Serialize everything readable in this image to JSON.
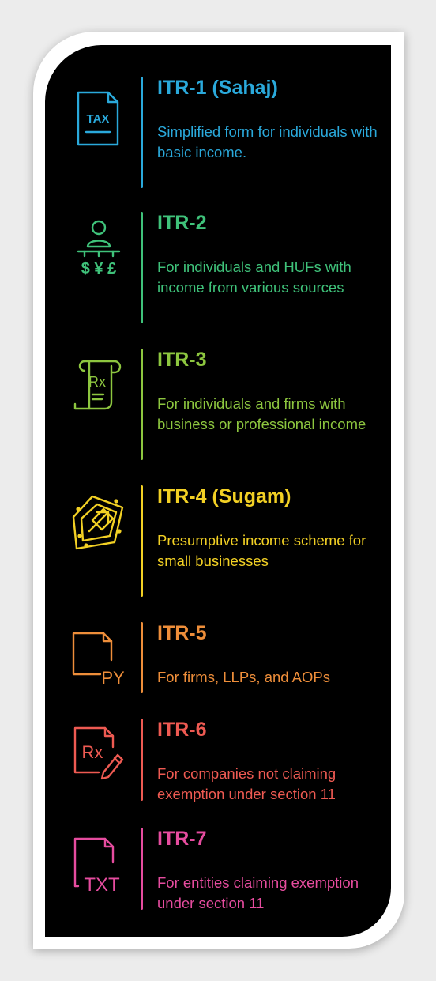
{
  "forms": [
    {
      "title": "ITR-1 (Sahaj)",
      "desc": "Simplified form for individuals with basic income.",
      "color": "#2aa9db",
      "icon": "tax-document-icon",
      "icon_text": "TAX"
    },
    {
      "title": "ITR-2",
      "desc": "For individuals and HUFs with income from various sources",
      "color": "#3fc27a",
      "icon": "person-currencies-icon",
      "icon_text": "$ ¥ £"
    },
    {
      "title": "ITR-3",
      "desc": "For individuals and firms with business or professional income",
      "color": "#8dc63f",
      "icon": "prescription-scroll-icon",
      "icon_text": "Rx"
    },
    {
      "title": "ITR-4 (Sugam)",
      "desc": "Presumptive income scheme for small businesses",
      "color": "#f2d024",
      "icon": "expand-arrow-icon",
      "icon_text": ""
    },
    {
      "title": "ITR-5",
      "desc": "For firms, LLPs, and AOPs",
      "color": "#ee8e3a",
      "icon": "py-file-icon",
      "icon_text": "PY"
    },
    {
      "title": "ITR-6",
      "desc": "For companies not claiming exemption under section 11",
      "color": "#ee5a52",
      "icon": "prescription-pen-icon",
      "icon_text": "Rx"
    },
    {
      "title": "ITR-7",
      "desc": "For entities claiming exemption under section 11",
      "color": "#e64c9f",
      "icon": "txt-file-icon",
      "icon_text": "TXT"
    }
  ]
}
